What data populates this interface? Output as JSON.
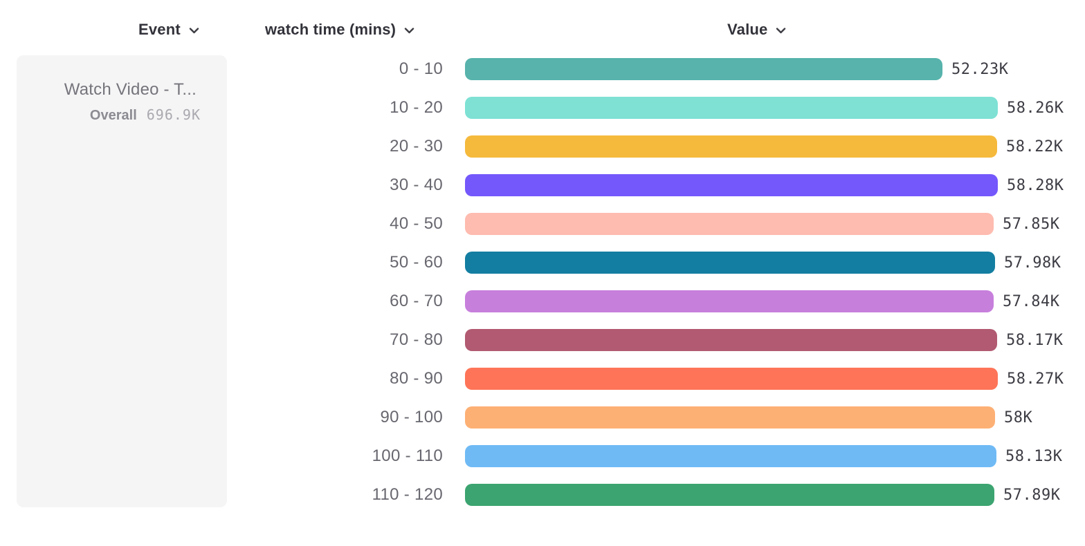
{
  "header": {
    "columns": [
      {
        "label": "Event"
      },
      {
        "label": "watch time (mins)"
      },
      {
        "label": "Value"
      }
    ]
  },
  "event_card": {
    "title": "Watch Video - T...",
    "overall_label": "Overall",
    "overall_value": "696.9K"
  },
  "chart_data": {
    "type": "bar",
    "orientation": "horizontal",
    "title": "",
    "xlabel": "Value",
    "ylabel": "watch time (mins)",
    "xlim": [
      0,
      58280
    ],
    "grid": false,
    "categories": [
      "0 - 10",
      "10 - 20",
      "20 - 30",
      "30 - 40",
      "40 - 50",
      "50 - 60",
      "60 - 70",
      "70 - 80",
      "80 - 90",
      "90 - 100",
      "100 - 110",
      "110 - 120"
    ],
    "values": [
      52230,
      58260,
      58220,
      58280,
      57850,
      57980,
      57840,
      58170,
      58270,
      58000,
      58130,
      57890
    ],
    "value_labels": [
      "52.23K",
      "58.26K",
      "58.22K",
      "58.28K",
      "57.85K",
      "57.98K",
      "57.84K",
      "58.17K",
      "58.27K",
      "58K",
      "58.13K",
      "57.89K"
    ],
    "colors": [
      "#57b3ac",
      "#7ee1d4",
      "#f5b93c",
      "#7458fb",
      "#febbaf",
      "#137ea1",
      "#c77fdc",
      "#b15a71",
      "#fe7458",
      "#fdb074",
      "#6fbaf5",
      "#3ca470"
    ]
  },
  "ui_colors": {
    "card_background": "#f5f5f6",
    "header_text": "#32323a",
    "bucket_label_text": "#67676f",
    "value_text": "#3c3c44"
  }
}
